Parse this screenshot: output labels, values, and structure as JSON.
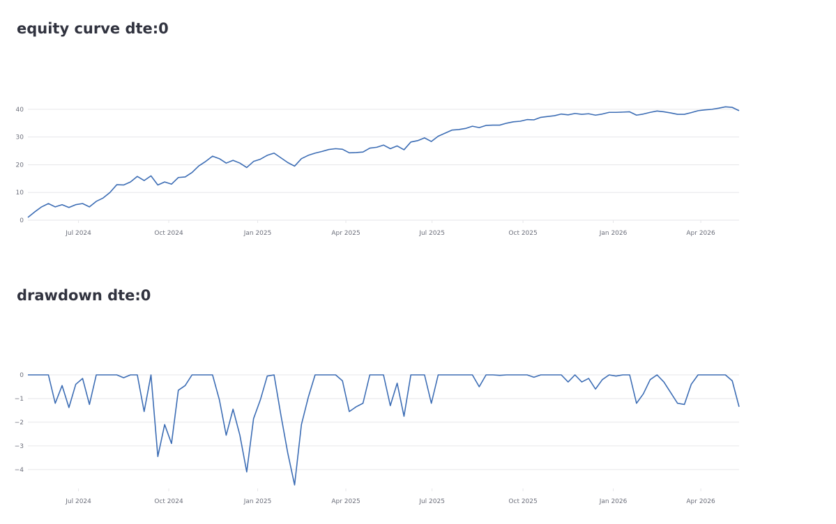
{
  "chart_data": [
    {
      "type": "line",
      "title": "equity curve dte:0",
      "color": "#3b6cb4",
      "grid": true,
      "x": [
        0,
        1,
        2,
        3,
        4,
        5,
        6,
        7,
        8,
        9,
        10,
        11,
        12,
        13,
        14,
        15,
        16,
        17,
        18,
        19,
        20,
        21,
        22,
        23,
        24,
        25,
        26,
        27,
        28,
        29,
        30,
        31,
        32,
        33,
        34,
        35,
        36,
        37,
        38,
        39,
        40,
        41,
        42,
        43,
        44,
        45,
        46,
        47,
        48,
        49,
        50,
        51,
        52,
        53,
        54,
        55,
        56,
        57,
        58,
        59,
        60,
        61,
        62,
        63,
        64,
        65,
        66,
        67,
        68,
        69,
        70,
        71,
        72,
        73,
        74,
        75,
        76,
        77,
        78,
        79,
        80,
        81,
        82,
        83,
        84,
        85,
        86,
        87,
        88,
        89,
        90,
        91,
        92,
        93,
        94,
        95,
        96,
        97,
        98,
        99,
        100,
        101,
        102,
        103,
        104
      ],
      "values": [
        1,
        3,
        4.8,
        6,
        4.8,
        5.6,
        4.6,
        5.6,
        6,
        4.8,
        6.8,
        8,
        10,
        12.8,
        12.7,
        13.8,
        15.8,
        14.3,
        16,
        12.7,
        13.8,
        13,
        15.4,
        15.6,
        17.2,
        19.6,
        21.2,
        23.1,
        22.2,
        20.6,
        21.6,
        20.6,
        19,
        21.2,
        22,
        23.4,
        24.2,
        22.5,
        20.8,
        19.5,
        22.2,
        23.4,
        24.2,
        24.8,
        25.5,
        25.8,
        25.6,
        24.3,
        24.4,
        24.6,
        26,
        26.3,
        27.1,
        25.8,
        26.8,
        25.4,
        28.2,
        28.7,
        29.7,
        28.4,
        30.3,
        31.4,
        32.5,
        32.7,
        33.1,
        33.9,
        33.4,
        34.2,
        34.3,
        34.3,
        35,
        35.5,
        35.7,
        36.3,
        36.2,
        37.1,
        37.4,
        37.7,
        38.3,
        38,
        38.5,
        38.2,
        38.4,
        37.9,
        38.3,
        38.9,
        38.9,
        39,
        39.1,
        37.9,
        38.3,
        38.9,
        39.4,
        39.1,
        38.7,
        38.2,
        38.2,
        38.8,
        39.5,
        39.8,
        40,
        40.4,
        40.9,
        40.7,
        39.5
      ],
      "xlim": [
        0,
        104
      ],
      "xticks": [
        {
          "value": 7.4,
          "label": "Jul 2024"
        },
        {
          "value": 20.6,
          "label": "Oct 2024"
        },
        {
          "value": 33.6,
          "label": "Jan 2025"
        },
        {
          "value": 46.5,
          "label": "Apr 2025"
        },
        {
          "value": 59.1,
          "label": "Jul 2025"
        },
        {
          "value": 72.4,
          "label": "Oct 2025"
        },
        {
          "value": 85.6,
          "label": "Jan 2026"
        },
        {
          "value": 98.4,
          "label": "Apr 2026"
        }
      ],
      "ylim": [
        0,
        45
      ],
      "yticks": [
        0,
        10,
        20,
        30,
        40
      ]
    },
    {
      "type": "line",
      "title": "drawdown dte:0",
      "color": "#3b6cb4",
      "grid": true,
      "x": [
        0,
        1,
        2,
        3,
        4,
        5,
        6,
        7,
        8,
        9,
        10,
        11,
        12,
        13,
        14,
        15,
        16,
        17,
        18,
        19,
        20,
        21,
        22,
        23,
        24,
        25,
        26,
        27,
        28,
        29,
        30,
        31,
        32,
        33,
        34,
        35,
        36,
        37,
        38,
        39,
        40,
        41,
        42,
        43,
        44,
        45,
        46,
        47,
        48,
        49,
        50,
        51,
        52,
        53,
        54,
        55,
        56,
        57,
        58,
        59,
        60,
        61,
        62,
        63,
        64,
        65,
        66,
        67,
        68,
        69,
        70,
        71,
        72,
        73,
        74,
        75,
        76,
        77,
        78,
        79,
        80,
        81,
        82,
        83,
        84,
        85,
        86,
        87,
        88,
        89,
        90,
        91,
        92,
        93,
        94,
        95,
        96,
        97,
        98,
        99,
        100,
        101,
        102,
        103,
        104
      ],
      "values": [
        0,
        0,
        0,
        0,
        -1.2,
        -0.45,
        -1.38,
        -0.4,
        -0.15,
        -1.25,
        0,
        0,
        0,
        0,
        -0.12,
        0,
        0,
        -1.55,
        0,
        -3.45,
        -2.1,
        -2.9,
        -0.65,
        -0.45,
        0,
        0,
        0,
        0,
        -1.05,
        -2.55,
        -1.45,
        -2.55,
        -4.1,
        -1.85,
        -1.05,
        -0.05,
        0,
        -1.7,
        -3.3,
        -4.65,
        -2.1,
        -0.95,
        0,
        0,
        0,
        0,
        -0.25,
        -1.55,
        -1.35,
        -1.2,
        0,
        0,
        0,
        -1.3,
        -0.35,
        -1.75,
        0,
        0,
        0,
        -1.2,
        0,
        0,
        0,
        0,
        0,
        0,
        -0.5,
        0,
        0,
        -0.02,
        0,
        0,
        0,
        0,
        -0.1,
        0,
        0,
        0,
        0,
        -0.3,
        0,
        -0.3,
        -0.15,
        -0.6,
        -0.2,
        0,
        -0.05,
        0,
        0,
        -1.2,
        -0.8,
        -0.2,
        0,
        -0.3,
        -0.75,
        -1.2,
        -1.25,
        -0.4,
        0,
        0,
        0,
        0,
        0,
        -0.25,
        -1.35
      ],
      "xlim": [
        0,
        104
      ],
      "xticks": [
        {
          "value": 7.4,
          "label": "Jul 2024"
        },
        {
          "value": 20.6,
          "label": "Oct 2024"
        },
        {
          "value": 33.6,
          "label": "Jan 2025"
        },
        {
          "value": 46.5,
          "label": "Apr 2025"
        },
        {
          "value": 59.1,
          "label": "Jul 2025"
        },
        {
          "value": 72.4,
          "label": "Oct 2025"
        },
        {
          "value": 85.6,
          "label": "Jan 2026"
        },
        {
          "value": 98.4,
          "label": "Apr 2026"
        }
      ],
      "ylim": [
        -4.8,
        0
      ],
      "yticks": [
        0,
        {
          "value": -1,
          "label": "−1"
        },
        {
          "value": -2,
          "label": "−2"
        },
        {
          "value": -3,
          "label": "−3"
        },
        {
          "value": -4,
          "label": "−4"
        }
      ]
    }
  ]
}
